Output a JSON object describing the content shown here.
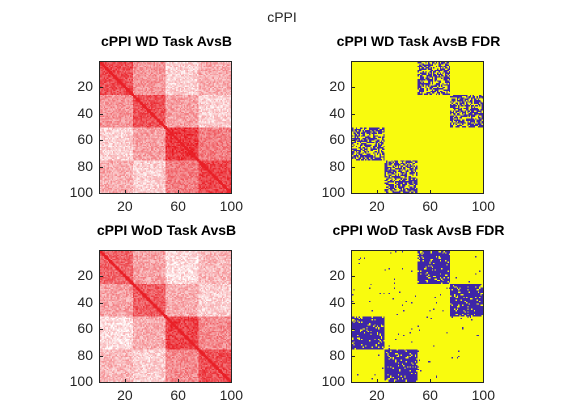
{
  "figure": {
    "title": "cPPI"
  },
  "chart_data": [
    {
      "type": "heatmap",
      "title": "cPPI WD Task AvsB",
      "matrix_size": 100,
      "blocks": [
        [
          1,
          25
        ],
        [
          26,
          50
        ],
        [
          51,
          75
        ],
        [
          76,
          100
        ]
      ],
      "colormap": "white-red",
      "colors": {
        "low": "#ffffff",
        "high": "#e8141c"
      },
      "xlim": [
        0.5,
        100.5
      ],
      "ylim": [
        0.5,
        100.5
      ],
      "xticks": [
        20,
        60,
        100
      ],
      "yticks": [
        20,
        40,
        60,
        80,
        100
      ],
      "block_levels": [
        [
          0.75,
          0.45,
          0.2,
          0.35
        ],
        [
          0.45,
          0.75,
          0.4,
          0.2
        ],
        [
          0.2,
          0.4,
          0.85,
          0.55
        ],
        [
          0.35,
          0.2,
          0.55,
          0.8
        ]
      ],
      "diagonal_level": 0.95
    },
    {
      "type": "heatmap",
      "title": "cPPI WD Task AvsB FDR",
      "matrix_size": 100,
      "colormap": "binary-parula",
      "colors": {
        "zero": "#3e26a8",
        "one": "#f9fb0e"
      },
      "xlim": [
        0.5,
        100.5
      ],
      "ylim": [
        0.5,
        100.5
      ],
      "xticks": [
        20,
        60,
        100
      ],
      "yticks": [
        20,
        40,
        60,
        80,
        100
      ],
      "zero_density": [
        [
          0,
          0,
          0.6,
          0
        ],
        [
          0,
          0,
          0,
          0.6
        ],
        [
          0.6,
          0,
          0,
          0
        ],
        [
          0,
          0.6,
          0,
          0
        ]
      ],
      "background_zero_density": 0.0
    },
    {
      "type": "heatmap",
      "title": "cPPI WoD Task AvsB",
      "matrix_size": 100,
      "colormap": "white-red",
      "colors": {
        "low": "#ffffff",
        "high": "#e8141c"
      },
      "xlim": [
        0.5,
        100.5
      ],
      "ylim": [
        0.5,
        100.5
      ],
      "xticks": [
        20,
        60,
        100
      ],
      "yticks": [
        20,
        40,
        60,
        80,
        100
      ],
      "block_levels": [
        [
          0.65,
          0.4,
          0.15,
          0.3
        ],
        [
          0.4,
          0.7,
          0.35,
          0.2
        ],
        [
          0.15,
          0.35,
          0.8,
          0.5
        ],
        [
          0.3,
          0.2,
          0.5,
          0.75
        ]
      ],
      "diagonal_level": 0.95
    },
    {
      "type": "heatmap",
      "title": "cPPI WoD Task AvsB FDR",
      "matrix_size": 100,
      "colormap": "binary-parula",
      "colors": {
        "zero": "#3e26a8",
        "one": "#f9fb0e"
      },
      "xlim": [
        0.5,
        100.5
      ],
      "ylim": [
        0.5,
        100.5
      ],
      "xticks": [
        20,
        60,
        100
      ],
      "yticks": [
        20,
        40,
        60,
        80,
        100
      ],
      "zero_density": [
        [
          0,
          0,
          0.88,
          0
        ],
        [
          0,
          0,
          0,
          0.88
        ],
        [
          0.88,
          0,
          0,
          0
        ],
        [
          0,
          0.88,
          0,
          0
        ]
      ],
      "background_zero_density": 0.012
    }
  ]
}
